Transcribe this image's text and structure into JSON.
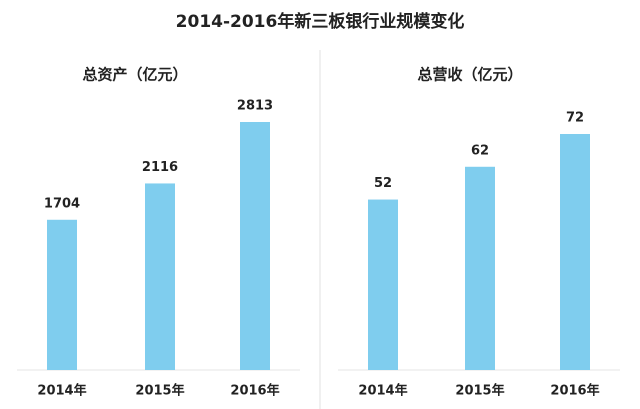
{
  "title": "2014-2016年新三板银行业规模变化",
  "chart_data": [
    {
      "type": "bar",
      "title": "总资产（亿元）",
      "categories": [
        "2014年",
        "2015年",
        "2016年"
      ],
      "values": [
        1704,
        2116,
        2813
      ],
      "color": "#7fcdee"
    },
    {
      "type": "bar",
      "title": "总营收（亿元）",
      "categories": [
        "2014年",
        "2015年",
        "2016年"
      ],
      "values": [
        52,
        62,
        72
      ],
      "color": "#7fcdee"
    }
  ]
}
